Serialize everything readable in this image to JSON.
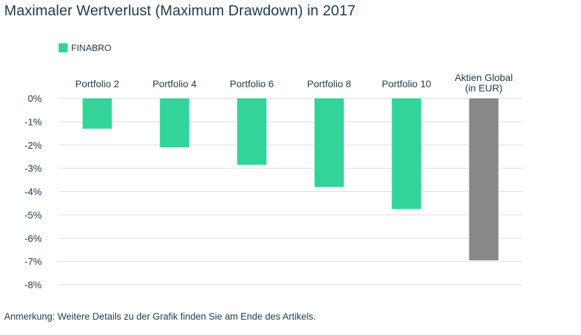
{
  "title": "Maximaler Wertverlust (Maximum Drawdown) in 2017",
  "note": "Anmerkung: Weitere Details zu der Grafik finden Sie am Ende des Artikels.",
  "colors": {
    "finabro": "#33d49a",
    "benchmark": "#888888",
    "text": "#1f3a4d",
    "grid": "#dddddd"
  },
  "chart_data": {
    "type": "bar",
    "title": "Maximaler Wertverlust (Maximum Drawdown) in 2017",
    "categories": [
      "Portfolio 2",
      "Portfolio 4",
      "Portfolio 6",
      "Portfolio 8",
      "Portfolio 10",
      [
        "Aktien Global",
        "(in EUR)"
      ]
    ],
    "series": [
      {
        "name": "FINABRO",
        "values": [
          -1.3,
          -2.1,
          -2.85,
          -3.8,
          -4.75,
          null
        ]
      },
      {
        "values": [
          null,
          null,
          null,
          null,
          null,
          -6.95
        ]
      }
    ],
    "ylim": [
      -8,
      0
    ],
    "yticks": [
      0,
      -1,
      -2,
      -3,
      -4,
      -5,
      -6,
      -7,
      -8
    ],
    "ytick_labels": [
      "0%",
      "-1%",
      "-2%",
      "-3%",
      "-4%",
      "-5%",
      "-6%",
      "-7%",
      "-8%"
    ],
    "grid": true,
    "legend": "top-left",
    "category_labels_position": "top"
  }
}
